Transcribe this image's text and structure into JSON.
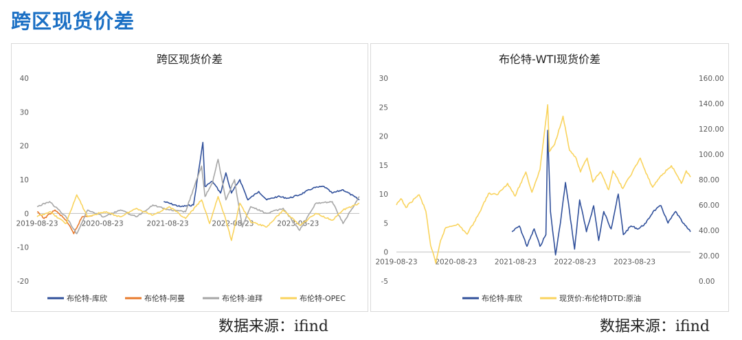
{
  "page": {
    "title": "跨区现货价差",
    "source_left": "数据来源：ifind",
    "source_right": "数据来源：ifind"
  },
  "colors": {
    "title": "#1a6fc4",
    "kuxin": "#2f4f9a",
    "aman": "#e87a2b",
    "dibai": "#a6a6a6",
    "opec": "#f9d35c"
  },
  "chart_data": [
    {
      "type": "line",
      "title": "跨区现货价差",
      "x_ticks": [
        "2019-08-23",
        "2020-08-23",
        "2021-08-23",
        "2022-08-23",
        "2023-08-23"
      ],
      "x_range": [
        "2019-08-23",
        "2024-07-31"
      ],
      "ylim": [
        -20,
        40
      ],
      "y_ticks": [
        "-20",
        "-10",
        "0",
        "10",
        "20",
        "30",
        "40"
      ],
      "legend_position": "bottom",
      "series": [
        {
          "name": "布伦特-库欣",
          "color": "#2f4f9a",
          "points": [
            [
              "2021-08-01",
              3.5
            ],
            [
              "2021-11-01",
              2.0
            ],
            [
              "2022-01-15",
              2.5
            ],
            [
              "2022-03-08",
              21.0
            ],
            [
              "2022-03-20",
              8.0
            ],
            [
              "2022-05-01",
              9.5
            ],
            [
              "2022-06-15",
              6.0
            ],
            [
              "2022-07-15",
              12.0
            ],
            [
              "2022-08-15",
              6.0
            ],
            [
              "2022-10-01",
              10.0
            ],
            [
              "2022-11-15",
              4.0
            ],
            [
              "2023-01-15",
              6.5
            ],
            [
              "2023-03-01",
              4.0
            ],
            [
              "2023-05-01",
              5.0
            ],
            [
              "2023-07-01",
              4.5
            ],
            [
              "2023-09-01",
              5.5
            ],
            [
              "2023-11-15",
              7.5
            ],
            [
              "2024-01-15",
              8.0
            ],
            [
              "2024-03-01",
              6.0
            ],
            [
              "2024-05-01",
              7.0
            ],
            [
              "2024-07-31",
              4.0
            ]
          ]
        },
        {
          "name": "布伦特-阿曼",
          "color": "#e87a2b",
          "points": [
            [
              "2019-08-23",
              0.5
            ],
            [
              "2019-10-01",
              -1.5
            ],
            [
              "2019-12-01",
              1.0
            ],
            [
              "2020-02-01",
              -2.0
            ],
            [
              "2020-03-15",
              -6.0
            ],
            [
              "2020-05-01",
              -1.0
            ],
            [
              "2020-07-01",
              -0.5
            ]
          ]
        },
        {
          "name": "布伦特-迪拜",
          "color": "#a6a6a6",
          "points": [
            [
              "2019-08-23",
              2.0
            ],
            [
              "2019-11-01",
              3.5
            ],
            [
              "2020-02-01",
              -1.0
            ],
            [
              "2020-04-01",
              -6.0
            ],
            [
              "2020-06-01",
              1.0
            ],
            [
              "2020-09-01",
              -1.0
            ],
            [
              "2020-12-01",
              1.0
            ],
            [
              "2021-03-01",
              -1.0
            ],
            [
              "2021-06-01",
              2.5
            ],
            [
              "2021-09-01",
              1.0
            ],
            [
              "2021-12-01",
              0.5
            ],
            [
              "2022-03-01",
              14.0
            ],
            [
              "2022-03-20",
              5.0
            ],
            [
              "2022-05-01",
              9.0
            ],
            [
              "2022-06-01",
              16.0
            ],
            [
              "2022-07-15",
              4.0
            ],
            [
              "2022-09-01",
              10.0
            ],
            [
              "2022-10-15",
              -4.0
            ],
            [
              "2022-12-01",
              2.0
            ],
            [
              "2023-03-01",
              0.0
            ],
            [
              "2023-06-01",
              1.5
            ],
            [
              "2023-09-01",
              -5.0
            ],
            [
              "2023-12-01",
              3.0
            ],
            [
              "2024-03-01",
              3.5
            ],
            [
              "2024-05-01",
              -3.0
            ],
            [
              "2024-07-31",
              5.0
            ]
          ]
        },
        {
          "name": "布伦特-OPEC",
          "color": "#f9d35c",
          "points": [
            [
              "2019-08-23",
              -1.0
            ],
            [
              "2019-11-01",
              0.5
            ],
            [
              "2020-02-01",
              -3.0
            ],
            [
              "2020-04-01",
              5.5
            ],
            [
              "2020-06-01",
              -1.0
            ],
            [
              "2020-09-01",
              0.5
            ],
            [
              "2020-12-01",
              -1.0
            ],
            [
              "2021-03-01",
              1.5
            ],
            [
              "2021-06-01",
              -0.5
            ],
            [
              "2021-09-01",
              2.0
            ],
            [
              "2021-12-01",
              -1.5
            ],
            [
              "2022-03-01",
              4.0
            ],
            [
              "2022-04-15",
              -3.0
            ],
            [
              "2022-06-01",
              5.0
            ],
            [
              "2022-07-15",
              -2.0
            ],
            [
              "2022-08-15",
              -8.0
            ],
            [
              "2022-10-01",
              3.0
            ],
            [
              "2022-12-01",
              -2.5
            ],
            [
              "2023-03-01",
              -4.0
            ],
            [
              "2023-06-01",
              1.0
            ],
            [
              "2023-09-01",
              -3.5
            ],
            [
              "2023-12-01",
              0.0
            ],
            [
              "2024-03-01",
              -2.0
            ],
            [
              "2024-05-01",
              1.0
            ],
            [
              "2024-07-31",
              3.0
            ]
          ]
        }
      ]
    },
    {
      "type": "line",
      "title": "布伦特-WTI现货价差",
      "x_ticks": [
        "2019-08-23",
        "2020-08-23",
        "2021-08-23",
        "2022-08-23",
        "2023-08-23"
      ],
      "x_range": [
        "2019-08-23",
        "2024-07-31"
      ],
      "ylim": [
        -5,
        30
      ],
      "y_ticks": [
        "-5",
        "0",
        "5",
        "10",
        "15",
        "20",
        "25",
        "30"
      ],
      "y2lim": [
        0,
        160
      ],
      "y2_ticks": [
        "0.00",
        "20.00",
        "40.00",
        "60.00",
        "80.00",
        "100.00",
        "120.00",
        "140.00",
        "160.00"
      ],
      "legend_position": "bottom",
      "series": [
        {
          "name": "布伦特-库欣",
          "axis": "left",
          "color": "#2f4f9a",
          "points": [
            [
              "2021-08-01",
              3.5
            ],
            [
              "2021-09-15",
              4.5
            ],
            [
              "2021-11-01",
              1.0
            ],
            [
              "2021-12-15",
              4.0
            ],
            [
              "2022-01-20",
              1.0
            ],
            [
              "2022-02-25",
              3.0
            ],
            [
              "2022-03-08",
              21.0
            ],
            [
              "2022-03-25",
              7.0
            ],
            [
              "2022-04-25",
              -0.5
            ],
            [
              "2022-05-25",
              5.0
            ],
            [
              "2022-06-25",
              12.0
            ],
            [
              "2022-07-20",
              7.0
            ],
            [
              "2022-08-20",
              0.5
            ],
            [
              "2022-09-20",
              9.0
            ],
            [
              "2022-11-01",
              3.5
            ],
            [
              "2022-12-15",
              8.0
            ],
            [
              "2023-01-15",
              2.0
            ],
            [
              "2023-02-15",
              7.0
            ],
            [
              "2023-04-01",
              4.0
            ],
            [
              "2023-05-15",
              10.0
            ],
            [
              "2023-06-15",
              3.0
            ],
            [
              "2023-08-01",
              4.5
            ],
            [
              "2023-09-15",
              4.0
            ],
            [
              "2023-11-01",
              5.0
            ],
            [
              "2023-12-15",
              7.0
            ],
            [
              "2024-02-01",
              8.0
            ],
            [
              "2024-03-15",
              5.0
            ],
            [
              "2024-05-01",
              7.0
            ],
            [
              "2024-06-15",
              5.0
            ],
            [
              "2024-07-31",
              3.5
            ]
          ]
        },
        {
          "name": "现货价:布伦特DTD:原油",
          "axis": "right",
          "color": "#f9d35c",
          "points": [
            [
              "2019-08-23",
              60
            ],
            [
              "2019-09-20",
              65
            ],
            [
              "2019-10-20",
              58
            ],
            [
              "2019-12-20",
              66
            ],
            [
              "2020-01-10",
              68
            ],
            [
              "2020-02-20",
              55
            ],
            [
              "2020-03-20",
              28
            ],
            [
              "2020-04-21",
              14
            ],
            [
              "2020-05-20",
              32
            ],
            [
              "2020-06-20",
              42
            ],
            [
              "2020-09-01",
              45
            ],
            [
              "2020-10-30",
              37
            ],
            [
              "2021-01-01",
              51
            ],
            [
              "2021-03-10",
              69
            ],
            [
              "2021-05-01",
              68
            ],
            [
              "2021-07-05",
              77
            ],
            [
              "2021-08-20",
              67
            ],
            [
              "2021-10-25",
              86
            ],
            [
              "2021-12-01",
              70
            ],
            [
              "2022-01-20",
              88
            ],
            [
              "2022-03-08",
              139
            ],
            [
              "2022-03-18",
              102
            ],
            [
              "2022-04-20",
              108
            ],
            [
              "2022-06-10",
              130
            ],
            [
              "2022-07-20",
              103
            ],
            [
              "2022-08-25",
              98
            ],
            [
              "2022-09-25",
              86
            ],
            [
              "2022-11-05",
              97
            ],
            [
              "2022-12-10",
              78
            ],
            [
              "2023-01-25",
              86
            ],
            [
              "2023-03-17",
              72
            ],
            [
              "2023-04-12",
              87
            ],
            [
              "2023-06-12",
              73
            ],
            [
              "2023-08-10",
              86
            ],
            [
              "2023-09-27",
              97
            ],
            [
              "2023-11-01",
              85
            ],
            [
              "2023-12-12",
              74
            ],
            [
              "2024-01-25",
              82
            ],
            [
              "2024-04-05",
              91
            ],
            [
              "2024-06-05",
              77
            ],
            [
              "2024-07-05",
              87
            ],
            [
              "2024-07-31",
              82
            ]
          ]
        }
      ]
    }
  ]
}
